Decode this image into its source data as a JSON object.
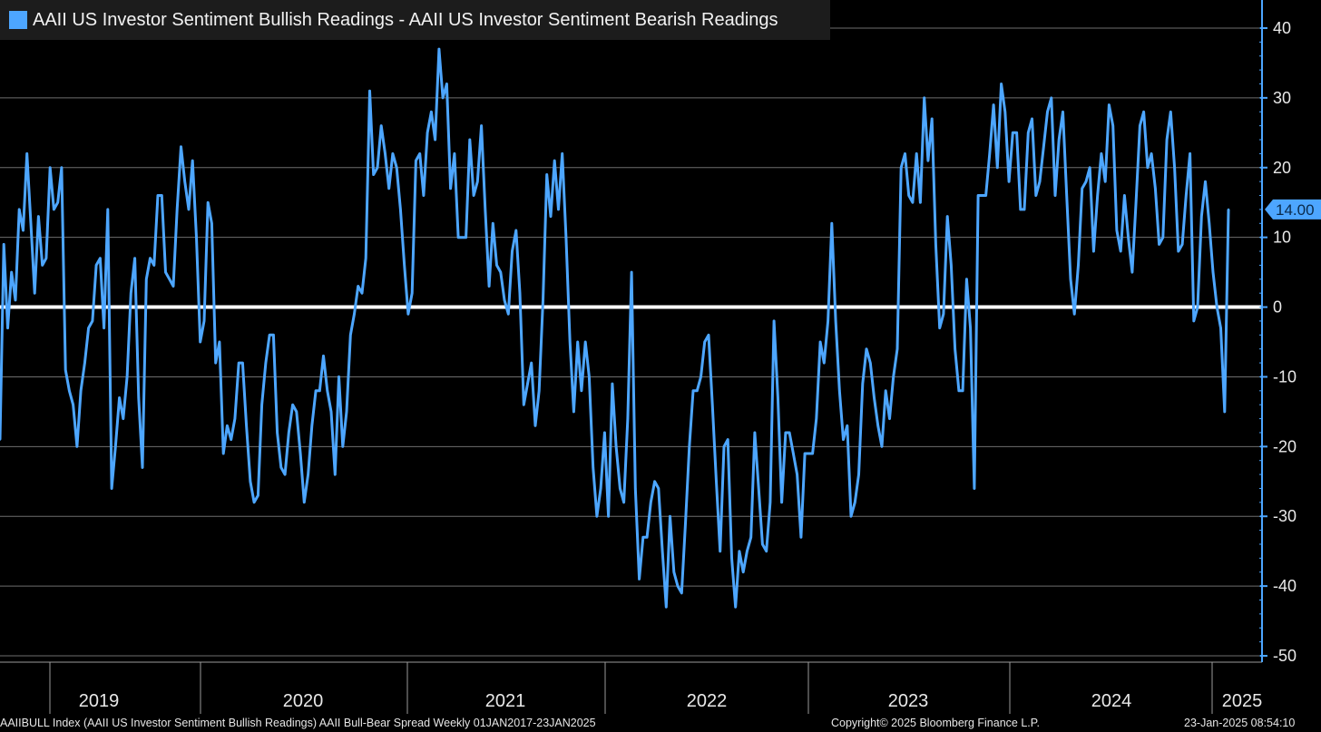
{
  "legend": {
    "label": "AAII US Investor Sentiment Bullish Readings - AAII US Investor Sentiment Bearish Readings",
    "color": "#4da6ff"
  },
  "footer": {
    "description": "AAIIBULL Index (AAII US Investor Sentiment Bullish Readings) AAII Bull-Bear Spread  Weekly 01JAN2017-23JAN2025",
    "copyright": "Copyright© 2025 Bloomberg Finance L.P.",
    "timestamp": "23-Jan-2025 08:54:10"
  },
  "chart_data": {
    "type": "line",
    "title": "",
    "ylim": [
      -50,
      40
    ],
    "yticks": [
      40,
      30,
      20,
      10,
      0,
      -10,
      -20,
      -30,
      -40,
      -50
    ],
    "x_labels": [
      "2019",
      "2020",
      "2021",
      "2022",
      "2023",
      "2024",
      "2025"
    ],
    "grid": true,
    "zero_line": true,
    "last_value_label": "14.00",
    "series": [
      {
        "name": "AAII US Investor Sentiment Bullish Readings - AAII US Investor Sentiment Bearish Readings",
        "color": "#4da6ff",
        "x_range": [
          "2018-11-01",
          "2025-01-23"
        ],
        "values": [
          -19,
          9,
          -3,
          5,
          1,
          14,
          11,
          22,
          12,
          2,
          13,
          6,
          7,
          20,
          14,
          15,
          20,
          -9,
          -12,
          -14,
          -20,
          -12,
          -8,
          -3,
          -2,
          6,
          7,
          -3,
          14,
          -26,
          -20,
          -13,
          -16,
          -10,
          2,
          7,
          -13,
          -23,
          4,
          7,
          6,
          16,
          16,
          5,
          4,
          3,
          14,
          23,
          18,
          14,
          21,
          10,
          -5,
          -2,
          15,
          12,
          -8,
          -5,
          -21,
          -17,
          -19,
          -16,
          -8,
          -8,
          -17,
          -25,
          -28,
          -27,
          -14,
          -8,
          -4,
          -4,
          -18,
          -23,
          -24,
          -18,
          -14,
          -15,
          -21,
          -28,
          -24,
          -17,
          -12,
          -12,
          -7,
          -12,
          -15,
          -24,
          -10,
          -20,
          -15,
          -4,
          -1,
          3,
          2,
          7,
          31,
          19,
          20,
          26,
          22,
          17,
          22,
          20,
          14,
          6,
          -1,
          2,
          21,
          22,
          16,
          25,
          28,
          24,
          37,
          30,
          32,
          17,
          22,
          10,
          10,
          10,
          24,
          16,
          18,
          26,
          14,
          3,
          12,
          6,
          5,
          1,
          -1,
          8,
          11,
          2,
          -14,
          -11,
          -8,
          -17,
          -12,
          1,
          19,
          13,
          21,
          14,
          22,
          10,
          -5,
          -15,
          -5,
          -12,
          -5,
          -10,
          -23,
          -30,
          -26,
          -18,
          -30,
          -11,
          -20,
          -26,
          -28,
          -16,
          5,
          -26,
          -39,
          -33,
          -33,
          -28,
          -25,
          -26,
          -35,
          -43,
          -30,
          -38,
          -40,
          -41,
          -31,
          -20,
          -12,
          -12,
          -10,
          -5,
          -4,
          -14,
          -25,
          -35,
          -20,
          -19,
          -36,
          -43,
          -35,
          -38,
          -35,
          -33,
          -18,
          -26,
          -34,
          -35,
          -28,
          -2,
          -13,
          -28,
          -18,
          -18,
          -21,
          -24,
          -33,
          -21,
          -21,
          -21,
          -16,
          -5,
          -8,
          -2,
          12,
          -2,
          -12,
          -19,
          -17,
          -30,
          -28,
          -24,
          -11,
          -6,
          -8,
          -13,
          -17,
          -20,
          -12,
          -16,
          -10,
          -6,
          20,
          22,
          16,
          15,
          22,
          15,
          30,
          21,
          27,
          9,
          -3,
          -1,
          13,
          6,
          -6,
          -12,
          -12,
          4,
          -3,
          -26,
          16,
          16,
          16,
          22,
          29,
          20,
          32,
          28,
          18,
          25,
          25,
          14,
          14,
          25,
          27,
          16,
          18,
          23,
          28,
          30,
          16,
          24,
          28,
          16,
          4,
          -1,
          6,
          17,
          18,
          20,
          8,
          16,
          22,
          18,
          29,
          26,
          11,
          8,
          16,
          10,
          5,
          15,
          26,
          28,
          20,
          22,
          17,
          9,
          10,
          24,
          28,
          20,
          8,
          9,
          16,
          22,
          -2,
          0,
          13,
          18,
          12,
          5,
          0,
          -3,
          -15,
          14
        ]
      }
    ]
  }
}
